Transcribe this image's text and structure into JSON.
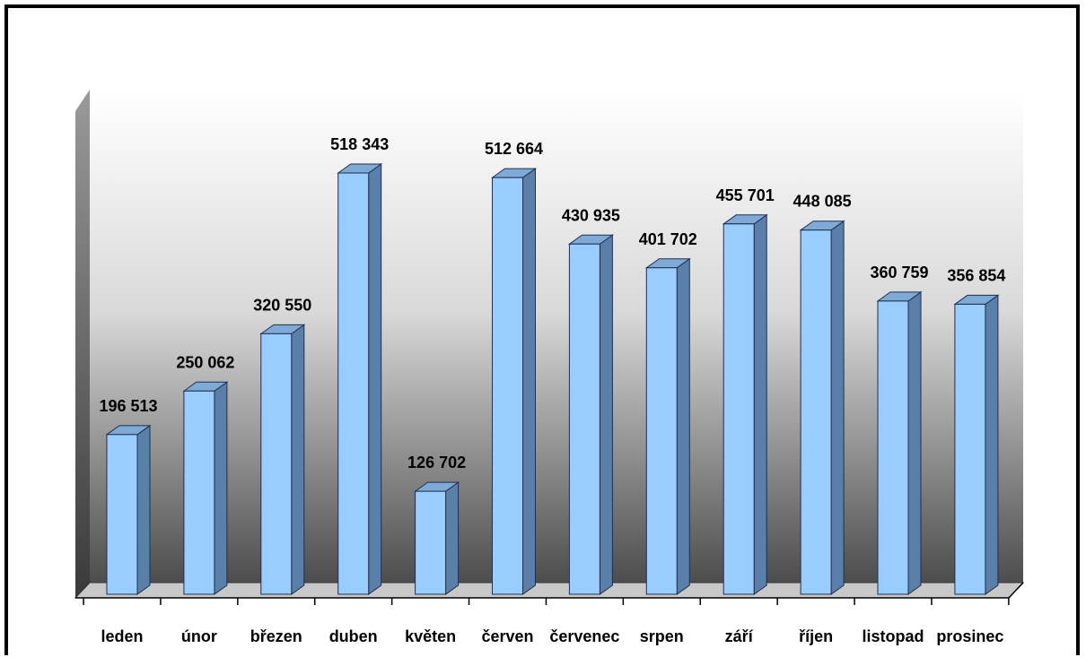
{
  "chart_data": {
    "type": "bar",
    "categories": [
      "leden",
      "únor",
      "březen",
      "duben",
      "květen",
      "červen",
      "červenec",
      "srpen",
      "září",
      "říjen",
      "listopad",
      "prosinec"
    ],
    "values": [
      196513,
      250062,
      320550,
      518343,
      126702,
      512664,
      430935,
      401702,
      455701,
      448085,
      360759,
      356854
    ],
    "value_labels": [
      "196 513",
      "250 062",
      "320 550",
      "518 343",
      "126 702",
      "512 664",
      "430 935",
      "401 702",
      "455 701",
      "448 085",
      "360 759",
      "356 854"
    ],
    "ylim": [
      0,
      600000
    ],
    "grid": false,
    "legend": "none",
    "style": "3d-column",
    "colors": {
      "bar_front": "#99ccff",
      "bar_side": "#5a7fa8",
      "bar_top": "#7faad6",
      "bar_outline": "#1f2f4f",
      "wall_top": "#ffffff",
      "wall_bottom": "#555555",
      "floor": "#c8c8c8"
    }
  }
}
